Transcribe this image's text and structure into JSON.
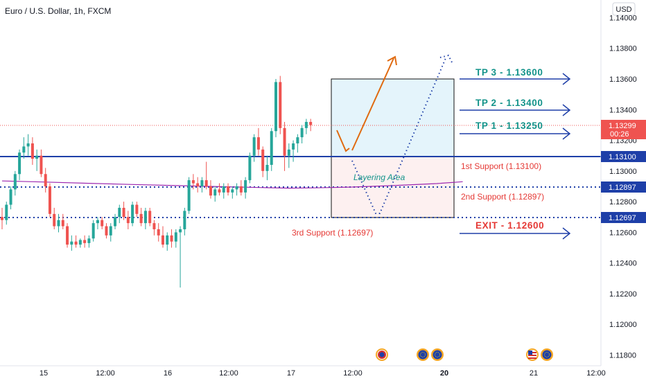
{
  "header": {
    "title": "Euro / U.S. Dollar, 1h, FXCM",
    "currency": "USD"
  },
  "colors": {
    "bull": "#26a69a",
    "bear": "#ef5350",
    "blue": "#1e3fa8",
    "teal": "#13938a",
    "red": "#e53935",
    "orange": "#e06a10",
    "ma": "#9c27b0",
    "upper_box_fill": "#e4f4fb",
    "lower_box_fill": "#fdf0f0"
  },
  "price_axis": {
    "ticks": [
      "1.14000",
      "1.13800",
      "1.13600",
      "1.13400",
      "1.13200",
      "1.13000",
      "1.12800",
      "1.12600",
      "1.12400",
      "1.12200",
      "1.12000",
      "1.11800"
    ],
    "tick_values": [
      1.14,
      1.138,
      1.136,
      1.134,
      1.132,
      1.13,
      1.128,
      1.126,
      1.124,
      1.122,
      1.12,
      1.118
    ],
    "current_price": "1.13299",
    "countdown": "00:26",
    "level_tags": [
      "1.13100",
      "1.12897",
      "1.12697"
    ]
  },
  "time_axis": {
    "labels": [
      "15",
      "12:00",
      "16",
      "12:00",
      "17",
      "12:00",
      "20",
      "21",
      "12:00"
    ]
  },
  "annotations": {
    "tp3": "TP 3 - 1.13600",
    "tp2": "TP 2 - 1.13400",
    "tp1": "TP 1 - 1.13250",
    "exit": "EXIT - 1.12600",
    "support1": "1st Support (1.13100)",
    "support2": "2nd Support (1.12897)",
    "support3": "3rd Support (1.12697)",
    "layering": "Layering Area"
  },
  "chart_data": {
    "type": "candlestick",
    "title": "Euro / U.S. Dollar, 1h, FXCM",
    "y_unit": "USD",
    "ylim": [
      1.1175,
      1.1412
    ],
    "levels": {
      "support_1": 1.131,
      "support_2": 1.12897,
      "support_3": 1.12697,
      "current": 1.13299
    },
    "moving_average": [
      [
        0,
        1.12935
      ],
      [
        10,
        1.12928
      ],
      [
        20,
        1.1292
      ],
      [
        30,
        1.12912
      ],
      [
        40,
        1.12905
      ],
      [
        50,
        1.12898
      ],
      [
        60,
        1.12892
      ],
      [
        66,
        1.12888
      ],
      [
        72,
        1.1289
      ],
      [
        80,
        1.12895
      ],
      [
        90,
        1.12905
      ],
      [
        100,
        1.12918
      ],
      [
        106,
        1.1293
      ]
    ],
    "candles": [
      [
        1.127,
        1.1276,
        1.1262,
        1.1268
      ],
      [
        1.1268,
        1.128,
        1.1265,
        1.1278
      ],
      [
        1.1278,
        1.129,
        1.1275,
        1.1288
      ],
      [
        1.1288,
        1.13,
        1.1284,
        1.1298
      ],
      [
        1.1298,
        1.1314,
        1.1294,
        1.1312
      ],
      [
        1.1312,
        1.1322,
        1.1308,
        1.1316
      ],
      [
        1.1316,
        1.1324,
        1.131,
        1.1318
      ],
      [
        1.1318,
        1.1322,
        1.1304,
        1.1308
      ],
      [
        1.1308,
        1.1314,
        1.13,
        1.131
      ],
      [
        1.131,
        1.1314,
        1.1296,
        1.1298
      ],
      [
        1.1298,
        1.1302,
        1.1286,
        1.129
      ],
      [
        1.129,
        1.1292,
        1.127,
        1.1272
      ],
      [
        1.1272,
        1.1276,
        1.1262,
        1.1264
      ],
      [
        1.1264,
        1.1272,
        1.126,
        1.1268
      ],
      [
        1.1268,
        1.1272,
        1.1262,
        1.1264
      ],
      [
        1.1264,
        1.1266,
        1.125,
        1.1252
      ],
      [
        1.1252,
        1.1258,
        1.1248,
        1.1254
      ],
      [
        1.1254,
        1.1258,
        1.125,
        1.1252
      ],
      [
        1.1252,
        1.1256,
        1.125,
        1.1255
      ],
      [
        1.1255,
        1.1258,
        1.125,
        1.1253
      ],
      [
        1.1253,
        1.1258,
        1.125,
        1.1256
      ],
      [
        1.1256,
        1.1268,
        1.1254,
        1.1266
      ],
      [
        1.1266,
        1.127,
        1.1262,
        1.1268
      ],
      [
        1.1268,
        1.127,
        1.1262,
        1.1264
      ],
      [
        1.1264,
        1.1266,
        1.1256,
        1.1258
      ],
      [
        1.1258,
        1.1266,
        1.1254,
        1.1264
      ],
      [
        1.1264,
        1.1272,
        1.1262,
        1.127
      ],
      [
        1.127,
        1.1278,
        1.1266,
        1.1276
      ],
      [
        1.1276,
        1.128,
        1.1268,
        1.127
      ],
      [
        1.127,
        1.1274,
        1.1262,
        1.1266
      ],
      [
        1.1266,
        1.128,
        1.1264,
        1.1278
      ],
      [
        1.1278,
        1.128,
        1.127,
        1.1272
      ],
      [
        1.1272,
        1.1276,
        1.1264,
        1.1266
      ],
      [
        1.1266,
        1.1276,
        1.1262,
        1.1274
      ],
      [
        1.1274,
        1.1276,
        1.1264,
        1.1266
      ],
      [
        1.1266,
        1.1268,
        1.1258,
        1.1262
      ],
      [
        1.1262,
        1.1266,
        1.1254,
        1.1258
      ],
      [
        1.1258,
        1.1264,
        1.125,
        1.1252
      ],
      [
        1.1252,
        1.126,
        1.1248,
        1.1258
      ],
      [
        1.1258,
        1.1262,
        1.125,
        1.1254
      ],
      [
        1.1254,
        1.1262,
        1.125,
        1.126
      ],
      [
        1.126,
        1.1264,
        1.1224,
        1.1262
      ],
      [
        1.1262,
        1.1276,
        1.1258,
        1.1274
      ],
      [
        1.1274,
        1.1296,
        1.1272,
        1.1294
      ],
      [
        1.1294,
        1.1298,
        1.1288,
        1.1292
      ],
      [
        1.1292,
        1.1296,
        1.1286,
        1.129
      ],
      [
        1.129,
        1.1296,
        1.1286,
        1.1294
      ],
      [
        1.1294,
        1.1306,
        1.1288,
        1.129
      ],
      [
        1.129,
        1.1294,
        1.1282,
        1.1284
      ],
      [
        1.1284,
        1.129,
        1.128,
        1.1288
      ],
      [
        1.1288,
        1.1292,
        1.1284,
        1.1286
      ],
      [
        1.1286,
        1.1292,
        1.1282,
        1.129
      ],
      [
        1.129,
        1.1292,
        1.1284,
        1.1286
      ],
      [
        1.1286,
        1.129,
        1.1282,
        1.1288
      ],
      [
        1.1288,
        1.1292,
        1.1284,
        1.129
      ],
      [
        1.129,
        1.1294,
        1.1284,
        1.1286
      ],
      [
        1.1286,
        1.1296,
        1.1282,
        1.1294
      ],
      [
        1.1294,
        1.1312,
        1.1292,
        1.131
      ],
      [
        1.131,
        1.1324,
        1.1306,
        1.1322
      ],
      [
        1.1322,
        1.1328,
        1.131,
        1.1314
      ],
      [
        1.1314,
        1.1316,
        1.1296,
        1.13
      ],
      [
        1.13,
        1.131,
        1.1294,
        1.1304
      ],
      [
        1.1304,
        1.1328,
        1.13,
        1.1326
      ],
      [
        1.1326,
        1.136,
        1.1322,
        1.1358
      ],
      [
        1.1358,
        1.1362,
        1.1324,
        1.1328
      ],
      [
        1.1328,
        1.1332,
        1.13,
        1.131
      ],
      [
        1.131,
        1.1318,
        1.1302,
        1.1314
      ],
      [
        1.1314,
        1.132,
        1.1306,
        1.1318
      ],
      [
        1.1318,
        1.1324,
        1.1312,
        1.1322
      ],
      [
        1.1322,
        1.133,
        1.1318,
        1.1328
      ],
      [
        1.1328,
        1.1334,
        1.1324,
        1.1332
      ],
      [
        1.1332,
        1.1334,
        1.1326,
        1.133
      ]
    ]
  }
}
